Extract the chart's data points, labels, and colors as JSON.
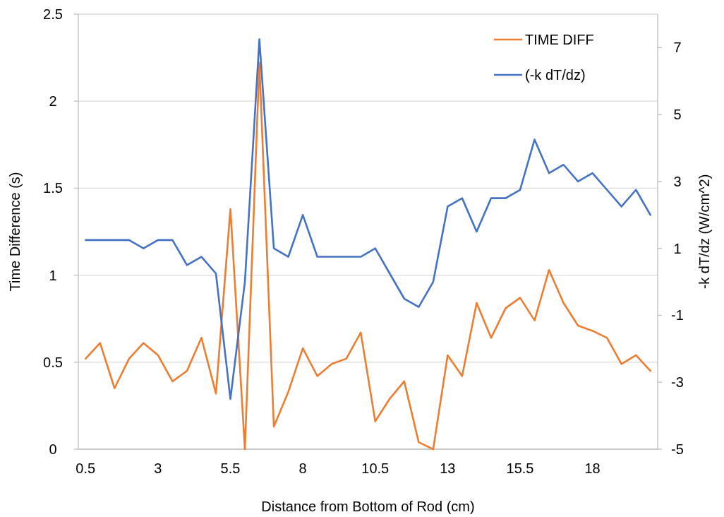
{
  "chart_data": {
    "type": "line",
    "xlabel": "Distance from Bottom of Rod (cm)",
    "ylabel": "Time Difference (s)",
    "y2label": "-k dT/dz (W/cm^2)",
    "categories": [
      "0.5",
      null,
      null,
      null,
      null,
      "3",
      null,
      null,
      null,
      null,
      "5.5",
      null,
      null,
      null,
      null,
      "8",
      null,
      null,
      null,
      null,
      "10.5",
      null,
      null,
      null,
      null,
      "13",
      null,
      null,
      null,
      null,
      "15.5",
      null,
      null,
      null,
      null,
      "18",
      null,
      null,
      null,
      null
    ],
    "series": [
      {
        "name": "TIME DIFF",
        "color": "#ed7d31",
        "values": [
          0.52,
          0.61,
          0.35,
          0.52,
          0.61,
          0.54,
          0.39,
          0.45,
          0.64,
          0.32,
          1.38,
          0,
          2.22,
          0.13,
          0.33,
          0.58,
          0.42,
          0.49,
          0.52,
          0.67,
          0.16,
          0.29,
          0.39,
          0.04,
          0,
          0.54,
          0.42,
          0.84,
          0.64,
          0.81,
          0.87,
          0.74,
          1.03,
          0.84,
          0.71,
          0.68,
          0.64,
          0.49,
          0.54,
          0.45
        ]
      },
      {
        "name": "(-k dT/dz)",
        "color": "#4472c4",
        "axis": "y2",
        "values": [
          1.25,
          1.25,
          1.25,
          1.25,
          1.0,
          1.25,
          1.25,
          0.5,
          0.75,
          0.25,
          -3.5,
          0,
          7.25,
          1.0,
          0.75,
          2.0,
          0.75,
          0.75,
          0.75,
          0.75,
          1.0,
          0.25,
          -0.5,
          -0.75,
          0,
          2.25,
          2.5,
          1.5,
          2.5,
          2.5,
          2.75,
          4.25,
          3.25,
          3.5,
          3.0,
          3.25,
          2.75,
          2.25,
          2.75,
          2.0
        ]
      }
    ],
    "ylim": [
      0,
      2.5
    ],
    "yticks": [
      0,
      0.5,
      1,
      1.5,
      2,
      2.5
    ],
    "y2lim": [
      -5,
      8
    ],
    "y2ticks": [
      -5,
      -3,
      -1,
      1,
      3,
      5,
      7
    ],
    "grid": "y",
    "legend": "top right",
    "line_style": "solid",
    "marker": "none"
  }
}
